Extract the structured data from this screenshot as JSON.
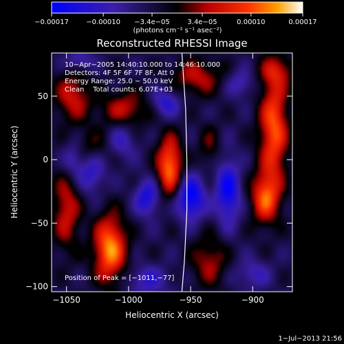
{
  "chart_data": {
    "type": "heatmap",
    "title": "Reconstructed RHESSI Image",
    "xlabel": "Heliocentric X (arcsec)",
    "ylabel": "Heliocentric Y (arcsec)",
    "xlim": [
      -1062,
      -868
    ],
    "ylim": [
      -104,
      84
    ],
    "x_ticks": [
      -1050,
      -1000,
      -950,
      -900
    ],
    "x_tick_labels": [
      "−1050",
      "−1000",
      "−950",
      "−900"
    ],
    "y_ticks": [
      -100,
      -50,
      0,
      50
    ],
    "y_tick_labels": [
      "−100",
      "−50",
      "0",
      "50"
    ],
    "colorbar": {
      "min": -0.00017,
      "max": 0.00017,
      "ticks": [
        -0.00017,
        -0.0001,
        -3.4e-05,
        3.4e-05,
        0.0001,
        0.00017
      ],
      "tick_labels": [
        "−0.00017",
        "−0.00010",
        "−3.4e−05",
        "3.4e−05",
        "0.00010",
        "0.00017"
      ],
      "unit_label": "(photons cm⁻² s⁻¹ asec⁻²)"
    },
    "info_lines": [
      "10−Apr−2005 14:40:10.000 to 14:46:10.000",
      "Detectors: 4F 5F 6F 7F 8F, Att 0",
      "Energy Range: 25.0 − 50.0 keV",
      "Clean    Total counts: 6.07E+03"
    ],
    "peak_label": "Position of Peak = [−1011,−77]",
    "peak": [
      -1011,
      -77
    ],
    "limb_curve": [
      [
        -957,
        84
      ],
      [
        -954,
        40
      ],
      [
        -953,
        0
      ],
      [
        -953,
        -40
      ],
      [
        -955,
        -80
      ],
      [
        -957,
        -104
      ]
    ],
    "blobs": [
      {
        "x": -1015,
        "y": -70,
        "sx": 9,
        "sy": 18,
        "v": 1.0
      },
      {
        "x": -967,
        "y": -5,
        "sx": 7,
        "sy": 16,
        "v": 0.95
      },
      {
        "x": -883,
        "y": 25,
        "sx": 8,
        "sy": 30,
        "v": 0.85
      },
      {
        "x": -890,
        "y": -30,
        "sx": 8,
        "sy": 14,
        "v": 0.8
      },
      {
        "x": -1050,
        "y": -40,
        "sx": 8,
        "sy": 22,
        "v": 0.55
      },
      {
        "x": -1045,
        "y": 50,
        "sx": 10,
        "sy": 14,
        "v": 0.55
      },
      {
        "x": -1003,
        "y": 40,
        "sx": 14,
        "sy": 10,
        "v": 0.5
      },
      {
        "x": -945,
        "y": 65,
        "sx": 14,
        "sy": 10,
        "v": 0.5
      },
      {
        "x": -935,
        "y": -80,
        "sx": 10,
        "sy": 14,
        "v": 0.45
      },
      {
        "x": -880,
        "y": 70,
        "sx": 10,
        "sy": 8,
        "v": 0.4
      },
      {
        "x": -935,
        "y": 10,
        "sx": 6,
        "sy": 12,
        "v": 0.3
      },
      {
        "x": -1030,
        "y": 10,
        "sx": 10,
        "sy": 10,
        "v": 0.3
      },
      {
        "x": -985,
        "y": -30,
        "sx": 7,
        "sy": 10,
        "v": -0.6
      },
      {
        "x": -950,
        "y": -30,
        "sx": 8,
        "sy": 12,
        "v": -0.8
      },
      {
        "x": -920,
        "y": -25,
        "sx": 7,
        "sy": 18,
        "v": -0.7
      },
      {
        "x": -1030,
        "y": -10,
        "sx": 8,
        "sy": 12,
        "v": -0.45
      },
      {
        "x": -1045,
        "y": 0,
        "sx": 6,
        "sy": 10,
        "v": -0.4
      },
      {
        "x": -970,
        "y": 45,
        "sx": 8,
        "sy": 8,
        "v": -0.5
      },
      {
        "x": -1040,
        "y": 78,
        "sx": 8,
        "sy": 6,
        "v": -0.4
      },
      {
        "x": -910,
        "y": 60,
        "sx": 8,
        "sy": 8,
        "v": -0.35
      },
      {
        "x": -985,
        "y": -95,
        "sx": 12,
        "sy": 8,
        "v": -0.4
      },
      {
        "x": -900,
        "y": -90,
        "sx": 10,
        "sy": 8,
        "v": -0.35
      },
      {
        "x": -1005,
        "y": 15,
        "sx": 8,
        "sy": 10,
        "v": -0.35
      }
    ]
  },
  "footer": {
    "timestamp": "1−Jul−2013 21:56"
  }
}
